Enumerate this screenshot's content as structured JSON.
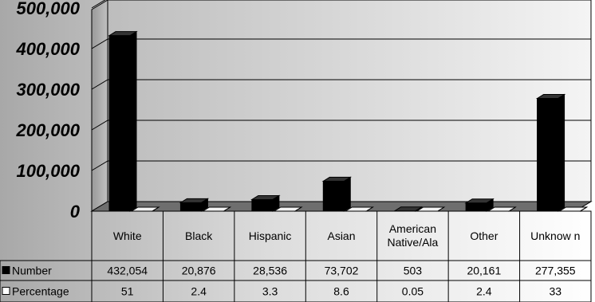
{
  "chart_data": {
    "type": "bar",
    "categories": [
      "White",
      "Black",
      "Hispanic",
      "Asian",
      "American Native/Ala",
      "Other",
      "Unknow n"
    ],
    "category_lines": [
      [
        "White"
      ],
      [
        "Black"
      ],
      [
        "Hispanic"
      ],
      [
        "Asian"
      ],
      [
        "American",
        "Native/Ala"
      ],
      [
        "Other"
      ],
      [
        "Unknow n"
      ]
    ],
    "series": [
      {
        "name": "Number",
        "color": "#000000",
        "values": [
          432054,
          20876,
          28536,
          73702,
          503,
          20161,
          277355
        ],
        "labels": [
          "432,054",
          "20,876",
          "28,536",
          "73,702",
          "503",
          "20,161",
          "277,355"
        ]
      },
      {
        "name": "Percentage",
        "color": "#ffffff",
        "values": [
          51,
          2.4,
          3.3,
          8.6,
          0.05,
          2.4,
          33
        ],
        "labels": [
          "51",
          "2.4",
          "3.3",
          "8.6",
          "0.05",
          "2.4",
          "33"
        ]
      }
    ],
    "y_ticks": [
      0,
      100000,
      200000,
      300000,
      400000,
      500000
    ],
    "y_tick_labels": [
      "0",
      "100,000",
      "200,000",
      "300,000",
      "400,000",
      "500,000"
    ],
    "ylim": [
      0,
      500000
    ],
    "grid": true,
    "legend": "data-table-rows",
    "view": "3d"
  }
}
